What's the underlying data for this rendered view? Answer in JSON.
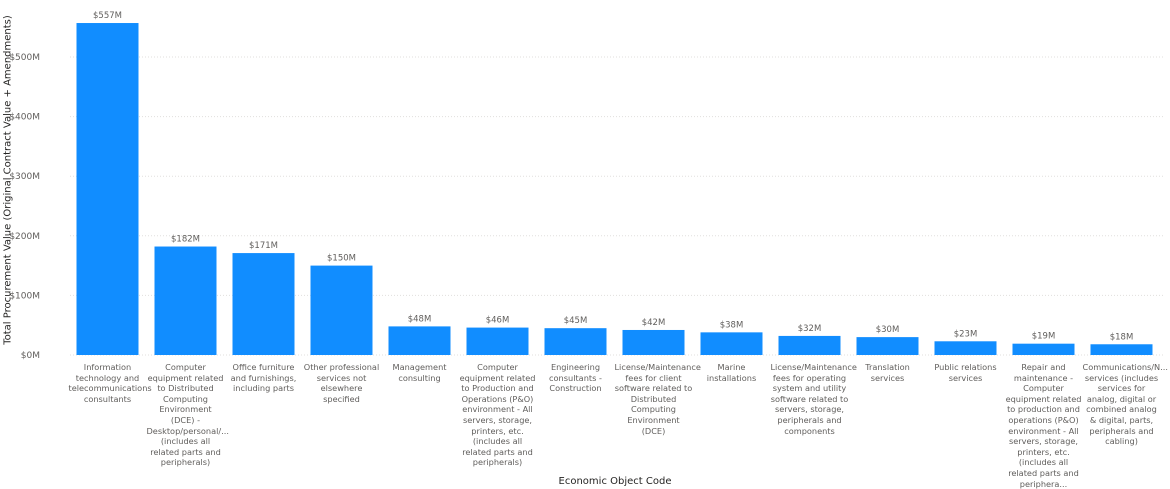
{
  "chart_data": {
    "type": "bar",
    "title": "",
    "xlabel": "Economic Object Code",
    "ylabel": "Total Procurement Value (Original Contract Value + Amendments)",
    "ylim": [
      0,
      557
    ],
    "yticks": [
      "$0M",
      "$100M",
      "$200M",
      "$300M",
      "$400M",
      "$500M"
    ],
    "ytick_values": [
      0,
      100,
      200,
      300,
      400,
      500
    ],
    "grid": true,
    "bar_color": "#118dff",
    "categories": [
      "Information technology and telecommunications consultants",
      "Computer equipment related to Distributed Computing Environment (DCE) - Desktop/personal/... (includes all related parts and peripherals)",
      "Office furniture and furnishings, including parts",
      "Other professional services not elsewhere specified",
      "Management consulting",
      "Computer equipment related to Production and Operations (P&O) environment - All servers, storage, printers, etc. (includes all related parts and peripherals)",
      "Engineering consultants - Construction",
      "License/Maintenance fees for client software related to Distributed Computing Environment (DCE)",
      "Marine installations",
      "License/Maintenance fees for operating system and utility software related to servers, storage, peripherals and components",
      "Translation services",
      "Public relations services",
      "Repair and maintenance - Computer equipment related to production and operations (P&O) environment - All servers, storage, printers, etc. (includes all related parts and periphera...",
      "Communications/N... services (includes services for analog, digital or combined analog & digital, parts, peripherals and cabling)"
    ],
    "values": [
      557,
      182,
      171,
      150,
      48,
      46,
      45,
      42,
      38,
      32,
      30,
      23,
      19,
      18
    ],
    "data_labels": [
      "$557M",
      "$182M",
      "$171M",
      "$150M",
      "$48M",
      "$46M",
      "$45M",
      "$42M",
      "$38M",
      "$32M",
      "$30M",
      "$23M",
      "$19M",
      "$18M"
    ]
  }
}
